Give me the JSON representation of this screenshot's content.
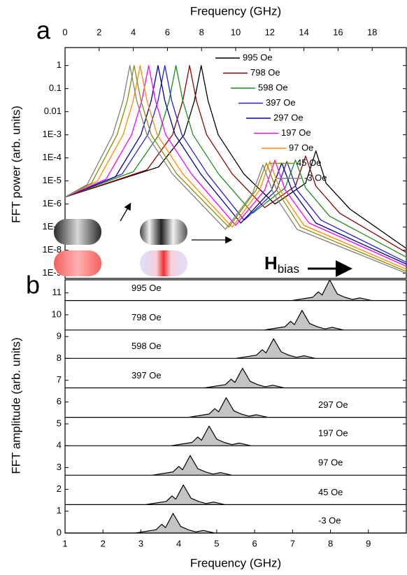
{
  "chart_data": [
    {
      "type": "line",
      "panel_label": "a",
      "x_label": "Frequency (GHz)",
      "y_label": "FFT power (arb. units)",
      "annotation": {
        "text": "H",
        "subscript": "bias"
      },
      "log_y": true,
      "xlim": [
        0,
        20
      ],
      "xticks": [
        0,
        2,
        4,
        6,
        8,
        10,
        12,
        14,
        16,
        18
      ],
      "ylim": [
        6e-10,
        6
      ],
      "yticks": [
        1,
        0.1,
        0.01,
        {
          "value": 0.001,
          "label": "1E-3"
        },
        {
          "value": 0.0001,
          "label": "1E-4"
        },
        {
          "value": 1e-05,
          "label": "1E-5"
        },
        {
          "value": 1e-06,
          "label": "1E-6"
        },
        {
          "value": 1e-07,
          "label": "1E-7"
        },
        {
          "value": 1e-08,
          "label": "1E-8"
        },
        {
          "value": 1e-09,
          "label": "1E-9"
        }
      ],
      "series": [
        {
          "name": "995 Oe",
          "color": "#000000",
          "x": [
            0,
            5.48,
            6.98,
            7.58,
            7.98,
            8.38,
            8.98,
            10.48,
            12.3,
            14.1,
            14.7,
            15.3,
            16.7,
            20
          ],
          "values": [
            2e-06,
            4e-05,
            0.001,
            0.03,
            1,
            0.03,
            0.001,
            2e-05,
            1e-06,
            8e-06,
            0.0002,
            8e-06,
            6e-07,
            1.2e-08
          ]
        },
        {
          "name": "798 Oe",
          "color": "#8b0000",
          "x": [
            0,
            4.8,
            6.3,
            6.9,
            7.3,
            7.7,
            8.3,
            9.8,
            11.7,
            13.5,
            14.1,
            14.7,
            16.1,
            20
          ],
          "values": [
            2e-06,
            3e-05,
            0.001,
            0.03,
            1,
            0.03,
            0.001,
            2e-05,
            7e-07,
            6e-06,
            0.00012,
            6e-06,
            4e-07,
            8e-09
          ]
        },
        {
          "name": "598 Oe",
          "color": "#1f8b1f",
          "x": [
            0,
            4,
            5.5,
            6.1,
            6.5,
            6.9,
            7.5,
            9,
            11,
            12.9,
            13.5,
            14.1,
            15.5,
            20
          ],
          "values": [
            2e-06,
            2.5e-05,
            0.001,
            0.03,
            1,
            0.03,
            0.001,
            2e-05,
            4e-07,
            5e-06,
            8e-05,
            5e-06,
            3e-07,
            5e-09
          ]
        },
        {
          "name": "397 Oe",
          "color": "#2020e0",
          "x": [
            0,
            3.35,
            4.85,
            5.45,
            5.85,
            6.25,
            6.85,
            8.35,
            10.5,
            12.4,
            13,
            13.6,
            15,
            20
          ],
          "values": [
            2e-06,
            2e-05,
            0.001,
            0.03,
            1,
            0.03,
            0.001,
            2e-05,
            2e-07,
            4e-06,
            7e-05,
            4e-06,
            2e-07,
            3e-09
          ]
        },
        {
          "name": "297 Oe",
          "color": "#000090",
          "x": [
            0,
            2.95,
            4.45,
            5.05,
            5.45,
            5.85,
            6.45,
            7.95,
            10.3,
            12.1,
            12.7,
            13.3,
            14.7,
            20
          ],
          "values": [
            2e-06,
            1.5e-05,
            0.001,
            0.03,
            1,
            0.03,
            0.001,
            2e-05,
            1.5e-07,
            4e-06,
            6e-05,
            4e-06,
            1.5e-07,
            2.5e-09
          ]
        },
        {
          "name": "197 Oe",
          "color": "#ff00ff",
          "x": [
            0,
            2.4,
            3.9,
            4.5,
            4.9,
            5.3,
            5.9,
            7.4,
            10,
            11.7,
            12.3,
            12.9,
            14.3,
            20
          ],
          "values": [
            2e-06,
            1.2e-05,
            0.001,
            0.03,
            1,
            0.03,
            0.001,
            2e-05,
            1.2e-07,
            4e-06,
            8e-05,
            4e-06,
            1.5e-07,
            2e-09
          ]
        },
        {
          "name": "97 Oe",
          "color": "#ff8c00",
          "x": [
            0,
            1.9,
            3.4,
            4,
            4.4,
            4.8,
            5.4,
            6.9,
            9.8,
            11.4,
            12,
            12.6,
            14,
            20
          ],
          "values": [
            2e-06,
            1e-05,
            0.001,
            0.03,
            1,
            0.03,
            0.001,
            2e-05,
            1e-07,
            4e-06,
            7e-05,
            4e-06,
            1.2e-07,
            1.5e-09
          ]
        },
        {
          "name": "45 Oe",
          "color": "#8b8b00",
          "x": [
            0,
            1.55,
            3.05,
            3.65,
            4.05,
            4.45,
            5.05,
            6.55,
            9.6,
            11.2,
            11.8,
            12.4,
            13.8,
            20
          ],
          "values": [
            2e-06,
            8e-06,
            0.001,
            0.03,
            1,
            0.03,
            0.001,
            2e-05,
            1e-07,
            4e-06,
            6e-05,
            4e-06,
            1e-07,
            1.2e-09
          ]
        },
        {
          "name": "-3 Oe",
          "color": "#808080",
          "x": [
            0,
            1.3,
            2.8,
            3.4,
            3.8,
            4.2,
            4.8,
            6.3,
            9.4,
            11,
            11.6,
            12.2,
            13.6,
            20
          ],
          "values": [
            2e-06,
            7e-06,
            0.001,
            0.03,
            1,
            0.03,
            0.001,
            2e-05,
            8e-08,
            3e-06,
            5e-05,
            3e-06,
            8e-08,
            1e-09
          ]
        }
      ]
    },
    {
      "type": "ridgeline",
      "panel_label": "b",
      "x_label": "Frequency (GHz)",
      "y_label": "FFT amplitude (arb. units)",
      "xlim": [
        1,
        10
      ],
      "xticks": [
        1,
        2,
        3,
        4,
        5,
        6,
        7,
        8,
        9
      ],
      "ylim": [
        0,
        11.6
      ],
      "yticks": [
        0,
        1,
        2,
        3,
        4,
        5,
        6,
        7,
        8,
        9,
        10,
        11
      ],
      "color": "#000000",
      "fill": "#c4c4c4",
      "series": [
        {
          "name": "995 Oe",
          "x": [
            1,
            6.98,
            7.53,
            7.68,
            7.78,
            7.98,
            8.18,
            8.38,
            8.58,
            8.78,
            9.08,
            10
          ],
          "values": [
            10.65,
            10.65,
            10.8,
            11.05,
            10.9,
            11.6,
            10.95,
            10.8,
            10.7,
            10.77,
            10.65,
            10.65
          ]
        },
        {
          "name": "798 Oe",
          "x": [
            1,
            6.25,
            6.8,
            6.95,
            7.05,
            7.25,
            7.45,
            7.65,
            7.85,
            8.05,
            8.35,
            10
          ],
          "values": [
            9.3,
            9.3,
            9.45,
            9.7,
            9.55,
            10.2,
            9.6,
            9.45,
            9.35,
            9.42,
            9.3,
            9.3
          ]
        },
        {
          "name": "598 Oe",
          "x": [
            1,
            5.5,
            6.05,
            6.2,
            6.3,
            6.5,
            6.7,
            6.9,
            7.1,
            7.3,
            7.6,
            10
          ],
          "values": [
            8,
            8,
            8.15,
            8.4,
            8.25,
            8.9,
            8.3,
            8.15,
            8.05,
            8.12,
            8,
            8
          ]
        },
        {
          "name": "397 Oe",
          "x": [
            1,
            4.68,
            5.23,
            5.38,
            5.48,
            5.68,
            5.88,
            6.08,
            6.28,
            6.48,
            6.78,
            10
          ],
          "values": [
            6.65,
            6.65,
            6.8,
            7.05,
            6.9,
            7.55,
            6.95,
            6.8,
            6.7,
            6.77,
            6.65,
            6.65
          ]
        },
        {
          "name": "297 Oe",
          "x": [
            1,
            4.25,
            4.8,
            4.95,
            5.05,
            5.25,
            5.45,
            5.65,
            5.85,
            6.05,
            6.35,
            10
          ],
          "values": [
            5.3,
            5.3,
            5.45,
            5.7,
            5.55,
            6.2,
            5.6,
            5.45,
            5.35,
            5.42,
            5.3,
            5.3
          ]
        },
        {
          "name": "197 Oe",
          "x": [
            1,
            3.8,
            4.35,
            4.5,
            4.6,
            4.8,
            5,
            5.2,
            5.4,
            5.6,
            5.9,
            10
          ],
          "values": [
            4,
            4,
            4.15,
            4.4,
            4.25,
            4.9,
            4.3,
            4.15,
            4.05,
            4.12,
            4,
            4
          ]
        },
        {
          "name": "97 Oe",
          "x": [
            1,
            3.3,
            3.85,
            4,
            4.1,
            4.3,
            4.5,
            4.7,
            4.9,
            5.1,
            5.4,
            10
          ],
          "values": [
            2.65,
            2.65,
            2.8,
            3.05,
            2.9,
            3.55,
            2.95,
            2.8,
            2.7,
            2.77,
            2.65,
            2.65
          ]
        },
        {
          "name": "45 Oe",
          "x": [
            1,
            3.12,
            3.67,
            3.82,
            3.92,
            4.12,
            4.32,
            4.52,
            4.72,
            4.92,
            5.22,
            10
          ],
          "values": [
            1.3,
            1.3,
            1.45,
            1.7,
            1.55,
            2.2,
            1.6,
            1.45,
            1.35,
            1.42,
            1.3,
            1.3
          ]
        },
        {
          "name": "-3 Oe",
          "x": [
            1,
            2.85,
            3.4,
            3.55,
            3.65,
            3.85,
            4.05,
            4.25,
            4.45,
            4.65,
            4.95,
            10
          ],
          "values": [
            0,
            0,
            0.15,
            0.4,
            0.25,
            0.9,
            0.3,
            0.15,
            0.05,
            0.12,
            0,
            0
          ]
        }
      ]
    }
  ]
}
